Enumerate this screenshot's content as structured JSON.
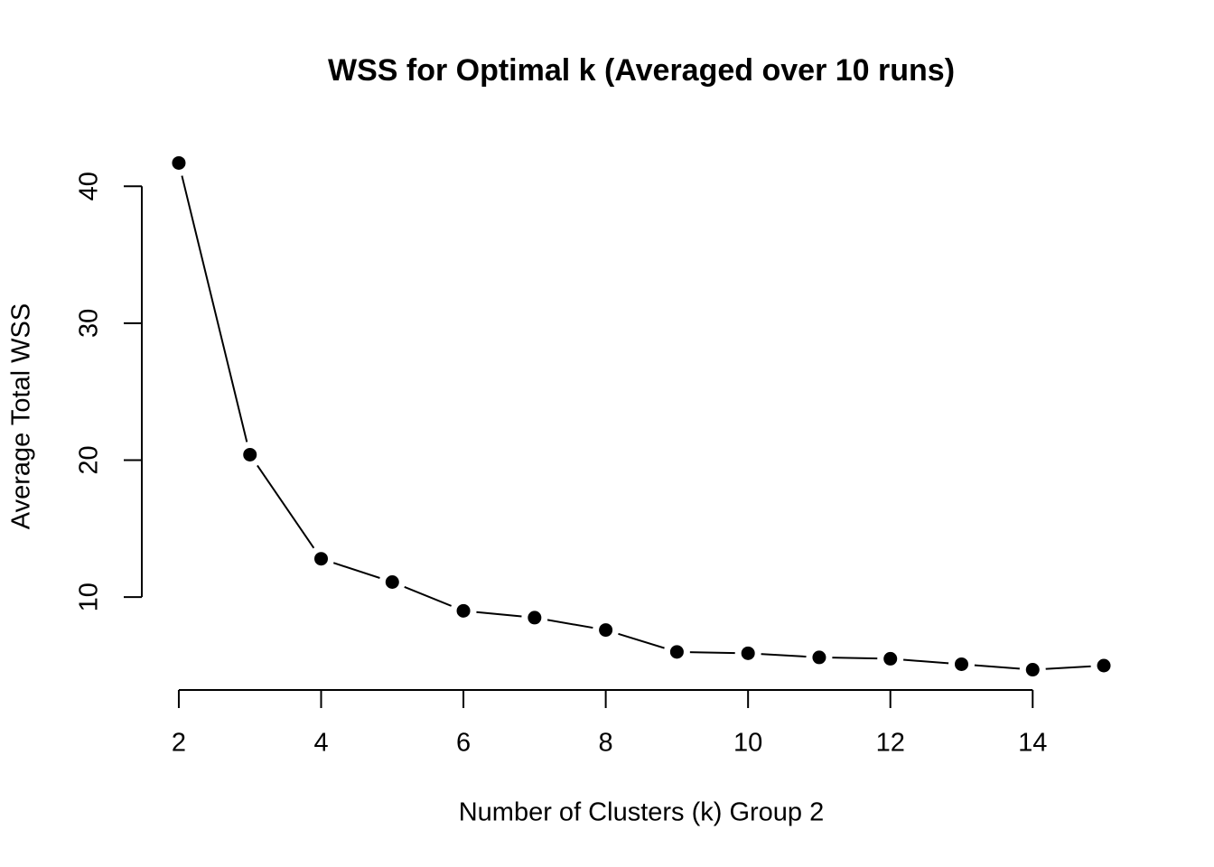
{
  "chart_data": {
    "type": "line",
    "title": "WSS for Optimal k (Averaged over 10 runs)",
    "x_label": "Number of Clusters (k) Group 2",
    "y_label": "Average Total WSS",
    "x": [
      2,
      3,
      4,
      5,
      6,
      7,
      8,
      9,
      10,
      11,
      12,
      13,
      14,
      15
    ],
    "series": [
      {
        "color": "#000000",
        "values": [
          41.7,
          20.4,
          12.8,
          11.1,
          9.0,
          8.5,
          7.6,
          6.0,
          5.9,
          5.6,
          5.5,
          5.1,
          4.7,
          5.0
        ]
      }
    ],
    "xlim": [
      1.48,
      15.52
    ],
    "xticks": [
      2,
      4,
      6,
      8,
      10,
      12,
      14
    ],
    "ylim": [
      3.22,
      43.18
    ],
    "yticks": [
      10,
      20,
      30,
      40
    ],
    "grid": false
  }
}
